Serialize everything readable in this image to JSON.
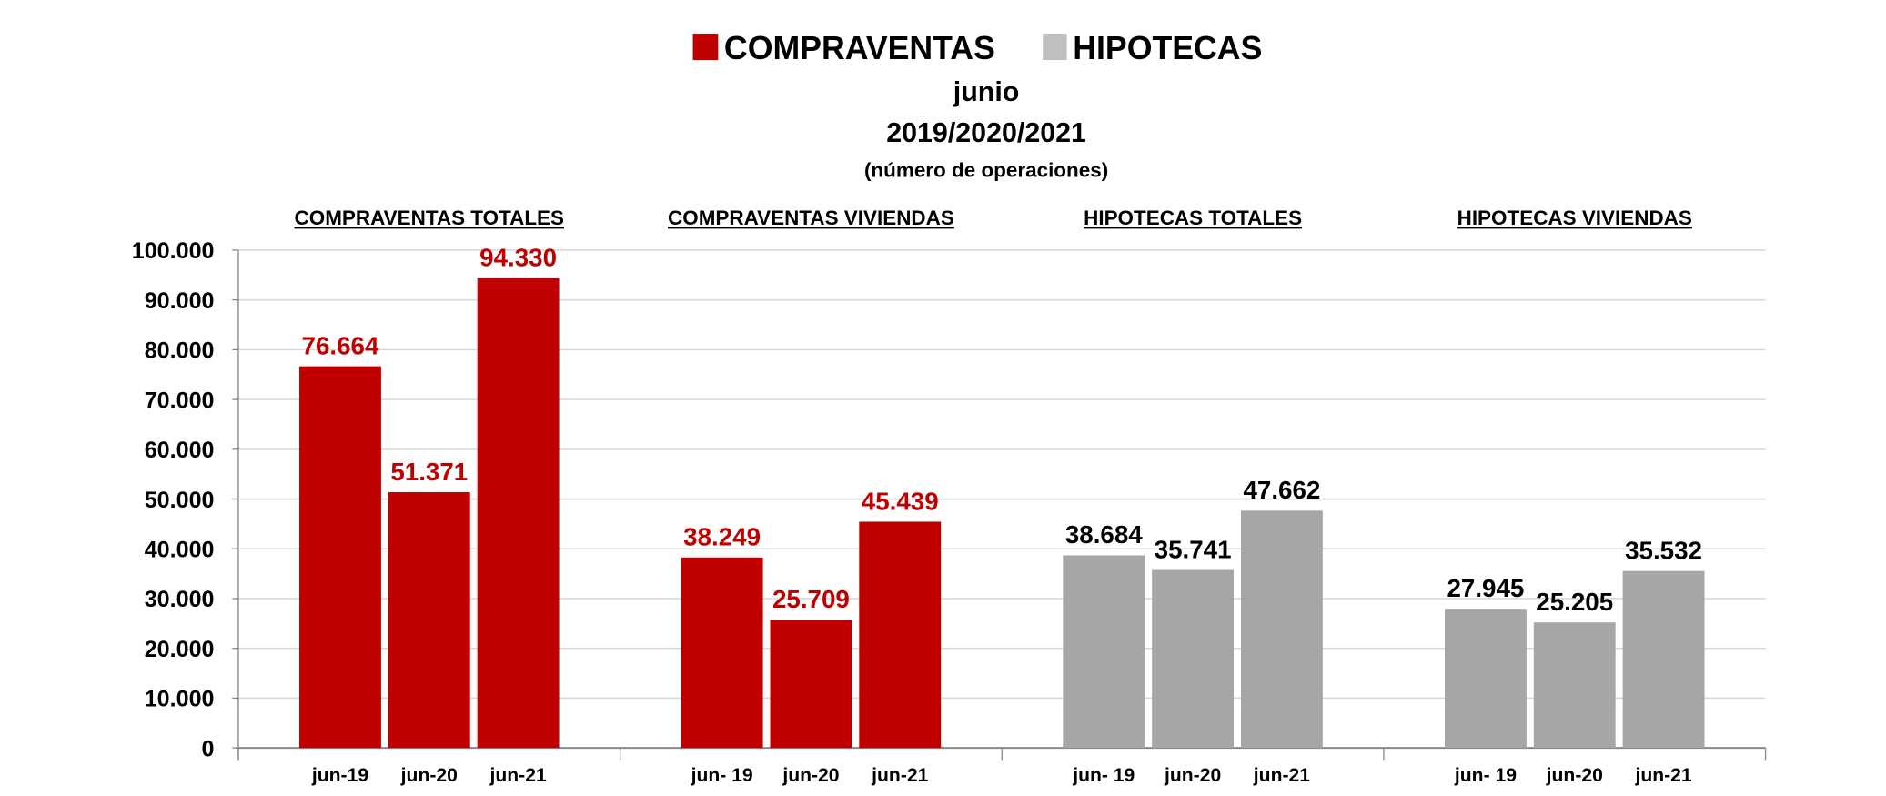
{
  "chart_data": {
    "type": "bar",
    "legend": [
      {
        "label": "COMPRAVENTAS",
        "color": "#C00000"
      },
      {
        "label": "HIPOTECAS",
        "color": "#A6A6A6"
      }
    ],
    "legend_placement": "top-center",
    "title": "junio",
    "subtitle": "2019/2020/2021",
    "note": "(número de operaciones)",
    "ylim": [
      0,
      100000
    ],
    "yticks": [
      "0",
      "10.000",
      "20.000",
      "30.000",
      "40.000",
      "50.000",
      "60.000",
      "70.000",
      "80.000",
      "90.000",
      "100.000"
    ],
    "grid": true,
    "groups": [
      {
        "title": "COMPRAVENTAS TOTALES",
        "series": "COMPRAVENTAS",
        "color": "#C00000",
        "label_color": "#C00000",
        "categories": [
          "jun-19",
          "jun-20",
          "jun-21"
        ],
        "values": [
          76664,
          51371,
          94330
        ],
        "labels": [
          "76.664",
          "51.371",
          "94.330"
        ]
      },
      {
        "title": "COMPRAVENTAS VIVIENDAS",
        "series": "COMPRAVENTAS",
        "color": "#C00000",
        "label_color": "#C00000",
        "categories": [
          "jun- 19",
          "jun-20",
          "jun-21"
        ],
        "values": [
          38249,
          25709,
          45439
        ],
        "labels": [
          "38.249",
          "25.709",
          "45.439"
        ]
      },
      {
        "title": "HIPOTECAS TOTALES",
        "series": "HIPOTECAS",
        "color": "#A6A6A6",
        "label_color": "#000000",
        "categories": [
          "jun- 19",
          "jun-20",
          "jun-21"
        ],
        "values": [
          38684,
          35741,
          47662
        ],
        "labels": [
          "38.684",
          "35.741",
          "47.662"
        ]
      },
      {
        "title": "HIPOTECAS VIVIENDAS",
        "series": "HIPOTECAS",
        "color": "#A6A6A6",
        "label_color": "#000000",
        "categories": [
          "jun- 19",
          "jun-20",
          "jun-21"
        ],
        "values": [
          27945,
          25205,
          35532
        ],
        "labels": [
          "27.945",
          "25.205",
          "35.532"
        ]
      }
    ]
  }
}
